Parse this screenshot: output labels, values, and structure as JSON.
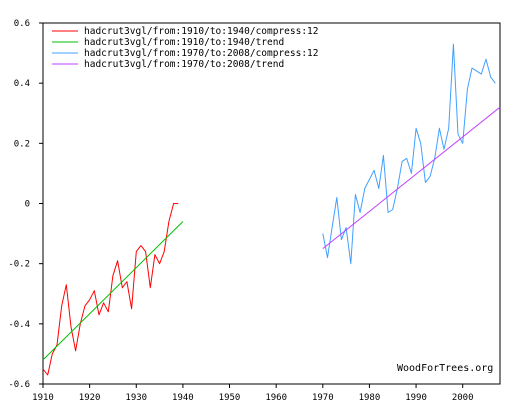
{
  "chart_data": {
    "type": "line",
    "title": "",
    "xlabel": "",
    "ylabel": "",
    "xlim": [
      1910,
      2008
    ],
    "ylim": [
      -0.6,
      0.6
    ],
    "x_ticks": [
      1910,
      1920,
      1930,
      1940,
      1950,
      1960,
      1970,
      1980,
      1990,
      2000
    ],
    "y_ticks": [
      0.6,
      0.4,
      0.2,
      0,
      -0.2,
      -0.4,
      -0.6
    ],
    "y_tick_labels": [
      "0.6",
      "0.4",
      "0.2",
      "0",
      "-0.2",
      "-0.4",
      "-0.6"
    ],
    "grid": false,
    "legend_position": "top-left",
    "attribution": "WoodForTrees.org",
    "series": [
      {
        "name": "hadcrut3vgl/from:1910/to:1940/compress:12",
        "color": "#ff0000",
        "x": [
          1910,
          1911,
          1912,
          1913,
          1914,
          1915,
          1916,
          1917,
          1918,
          1919,
          1920,
          1921,
          1922,
          1923,
          1924,
          1925,
          1926,
          1927,
          1928,
          1929,
          1930,
          1931,
          1932,
          1933,
          1934,
          1935,
          1936,
          1937,
          1938,
          1939
        ],
        "values": [
          -0.55,
          -0.57,
          -0.5,
          -0.47,
          -0.34,
          -0.27,
          -0.41,
          -0.49,
          -0.4,
          -0.34,
          -0.32,
          -0.29,
          -0.37,
          -0.33,
          -0.36,
          -0.24,
          -0.19,
          -0.28,
          -0.26,
          -0.35,
          -0.16,
          -0.14,
          -0.16,
          -0.28,
          -0.17,
          -0.2,
          -0.16,
          -0.06,
          0.0,
          0.0
        ]
      },
      {
        "name": "hadcrut3vgl/from:1910/to:1940/trend",
        "color": "#00c000",
        "x": [
          1910,
          1940
        ],
        "values": [
          -0.52,
          -0.06
        ]
      },
      {
        "name": "hadcrut3vgl/from:1970/to:2008/compress:12",
        "color": "#40a0ff",
        "x": [
          1970,
          1971,
          1972,
          1973,
          1974,
          1975,
          1976,
          1977,
          1978,
          1979,
          1980,
          1981,
          1982,
          1983,
          1984,
          1985,
          1986,
          1987,
          1988,
          1989,
          1990,
          1991,
          1992,
          1993,
          1994,
          1995,
          1996,
          1997,
          1998,
          1999,
          2000,
          2001,
          2002,
          2003,
          2004,
          2005,
          2006,
          2007
        ],
        "values": [
          -0.1,
          -0.18,
          -0.08,
          0.02,
          -0.12,
          -0.08,
          -0.2,
          0.03,
          -0.03,
          0.05,
          0.08,
          0.11,
          0.05,
          0.16,
          -0.03,
          -0.02,
          0.05,
          0.14,
          0.15,
          0.1,
          0.25,
          0.2,
          0.07,
          0.09,
          0.15,
          0.25,
          0.18,
          0.25,
          0.53,
          0.23,
          0.2,
          0.38,
          0.45,
          0.44,
          0.43,
          0.48,
          0.42,
          0.4
        ]
      },
      {
        "name": "hadcrut3vgl/from:1970/to:2008/trend",
        "color": "#c040ff",
        "x": [
          1970,
          2008
        ],
        "values": [
          -0.15,
          0.32
        ]
      }
    ]
  }
}
